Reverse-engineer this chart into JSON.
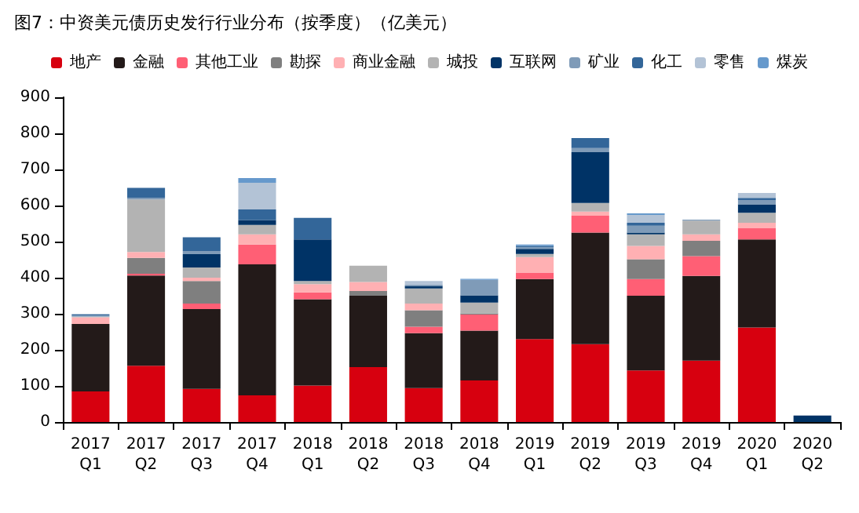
{
  "chart_data": {
    "type": "bar",
    "title": "图7：中资美元债历史发行行业分布（按季度）（亿美元）",
    "stacked": true,
    "legend": "top",
    "grid": false,
    "categories": [
      "2017\nQ1",
      "2017\nQ2",
      "2017\nQ3",
      "2017\nQ4",
      "2018\nQ1",
      "2018\nQ2",
      "2018\nQ3",
      "2018\nQ4",
      "2019\nQ1",
      "2019\nQ2",
      "2019\nQ3",
      "2019\nQ4",
      "2020\nQ1",
      "2020\nQ2"
    ],
    "ylim": [
      0,
      900
    ],
    "yticks": [
      0,
      100,
      200,
      300,
      400,
      500,
      600,
      700,
      800,
      900
    ],
    "series": [
      {
        "name": "地产",
        "color": "#d7000f",
        "values": [
          85,
          156,
          92,
          74,
          101,
          152,
          94,
          115,
          230,
          216,
          143,
          170,
          262,
          0
        ]
      },
      {
        "name": "金融",
        "color": "#231a19",
        "values": [
          187,
          250,
          221,
          363,
          239,
          198,
          152,
          138,
          166,
          309,
          207,
          235,
          244,
          0
        ]
      },
      {
        "name": "其他工业",
        "color": "#ff5f75",
        "values": [
          0,
          5,
          15,
          55,
          19,
          0,
          18,
          45,
          18,
          47,
          46,
          55,
          32,
          0
        ]
      },
      {
        "name": "勘探",
        "color": "#7f7f7f",
        "values": [
          0,
          44,
          63,
          0,
          0,
          13,
          46,
          3,
          0,
          0,
          55,
          42,
          0,
          0
        ]
      },
      {
        "name": "商业金融",
        "color": "#ffb0b3",
        "values": [
          18,
          16,
          9,
          28,
          23,
          25,
          18,
          0,
          43,
          11,
          37,
          18,
          14,
          0
        ]
      },
      {
        "name": "城投",
        "color": "#b3b3b3",
        "values": [
          2,
          146,
          28,
          26,
          9,
          45,
          42,
          30,
          9,
          24,
          32,
          38,
          28,
          0
        ]
      },
      {
        "name": "互联网",
        "color": "#003366",
        "values": [
          0,
          0,
          37,
          14,
          115,
          0,
          7,
          20,
          14,
          141,
          5,
          0,
          23,
          18
        ]
      },
      {
        "name": "矿业",
        "color": "#7f9bb8",
        "values": [
          3,
          5,
          9,
          0,
          0,
          0,
          4,
          43,
          4,
          11,
          19,
          3,
          12,
          0
        ]
      },
      {
        "name": "化工",
        "color": "#336699",
        "values": [
          3,
          27,
          38,
          29,
          60,
          0,
          0,
          0,
          4,
          28,
          8,
          0,
          6,
          0
        ]
      },
      {
        "name": "零售",
        "color": "#b3c3d6",
        "values": [
          2,
          0,
          null,
          74,
          0,
          0,
          10,
          0,
          0,
          null,
          22,
          null,
          14,
          0
        ]
      },
      {
        "name": "煤炭",
        "color": "#6699cc",
        "values": [
          0,
          0,
          0,
          13,
          0,
          0,
          0,
          3,
          4,
          0,
          4,
          0,
          0,
          0
        ]
      }
    ]
  }
}
